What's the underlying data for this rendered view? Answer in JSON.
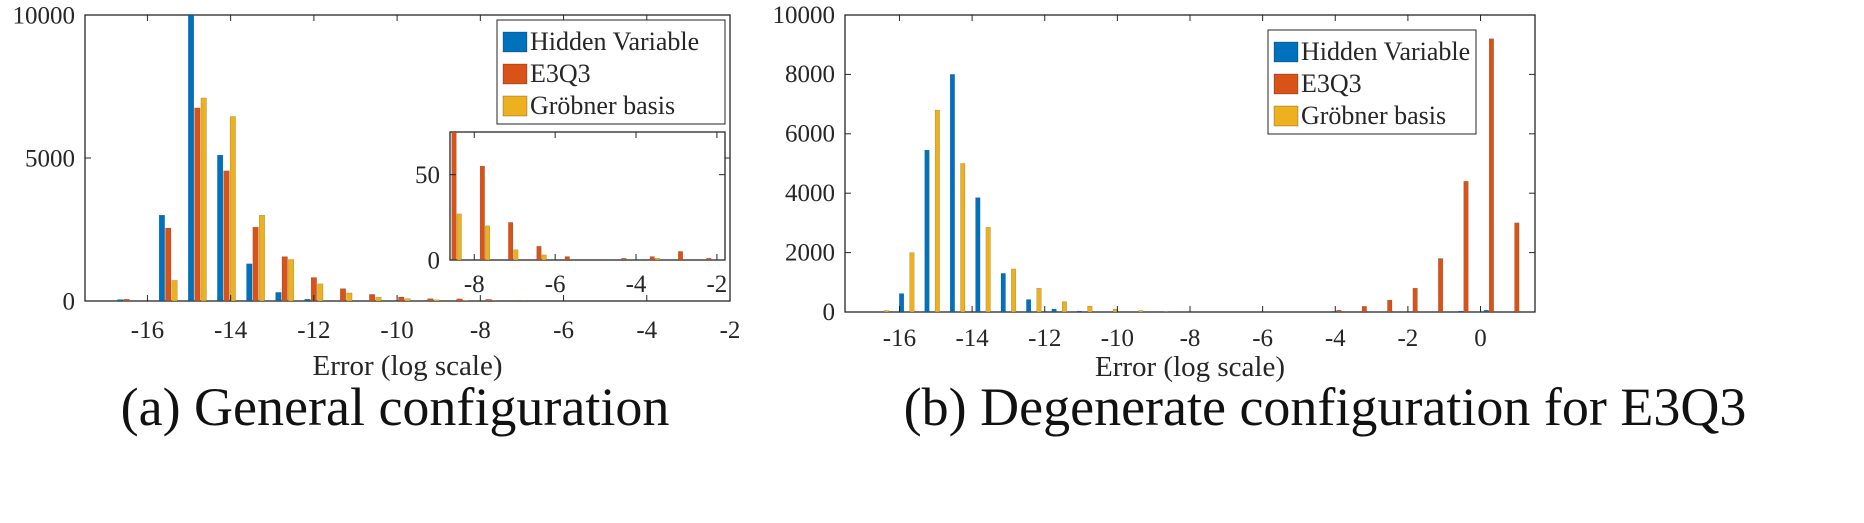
{
  "colors": {
    "hidden_variable": "#0072BD",
    "e3q3": "#D95319",
    "grobner": "#EDB120",
    "axis": "#262626"
  },
  "captions": {
    "a": "(a) General configuration",
    "b": "(b) Degenerate configuration for E3Q3"
  },
  "chart_data": [
    {
      "id": "a",
      "type": "bar",
      "title": "",
      "xlabel": "Error (log scale)",
      "ylabel": "",
      "xlim": [
        -17.5,
        -2
      ],
      "ylim": [
        0,
        10000
      ],
      "xticks": [
        -16,
        -14,
        -12,
        -10,
        -8,
        -6,
        -4,
        -2
      ],
      "yticks": [
        0,
        5000,
        10000
      ],
      "xtick_labels": [
        "-16",
        "-14",
        "-12",
        "-10",
        "-8",
        "-6",
        "-4",
        "-2"
      ],
      "ytick_labels": [
        "0",
        "5000",
        "10000"
      ],
      "legend": {
        "placement": "top-right",
        "entries": [
          "Hidden Variable",
          "E3Q3",
          "Gröbner basis"
        ]
      },
      "bin_width": 0.7,
      "x": [
        -16.5,
        -15.5,
        -14.8,
        -14.1,
        -13.4,
        -12.7,
        -12.0,
        -11.3,
        -10.6,
        -9.9,
        -9.2,
        -8.5,
        -7.8,
        -7.1
      ],
      "series": [
        {
          "name": "Hidden Variable",
          "values": [
            50,
            3000,
            10000,
            5100,
            1300,
            300,
            60,
            10,
            0,
            0,
            0,
            0,
            0,
            0
          ]
        },
        {
          "name": "E3Q3",
          "values": [
            60,
            2550,
            6750,
            4550,
            2580,
            1550,
            820,
            430,
            230,
            140,
            80,
            75,
            55,
            22
          ]
        },
        {
          "name": "Gröbner basis",
          "values": [
            0,
            720,
            7100,
            6450,
            3000,
            1450,
            600,
            280,
            130,
            80,
            40,
            20,
            5,
            3
          ]
        }
      ],
      "inset": {
        "xlim": [
          -8.6,
          -1.8
        ],
        "ylim": [
          0,
          75
        ],
        "xticks": [
          -8,
          -6,
          -4,
          -2
        ],
        "yticks": [
          0,
          50
        ],
        "xtick_labels": [
          "-8",
          "-6",
          "-4",
          "-2"
        ],
        "ytick_labels": [
          "0",
          "50"
        ],
        "x": [
          -8.5,
          -7.8,
          -7.1,
          -6.4,
          -5.7,
          -5.0,
          -4.3,
          -3.6,
          -2.9,
          -2.2
        ],
        "series": [
          {
            "name": "Hidden Variable",
            "values": [
              0,
              0,
              0,
              0,
              0,
              0,
              0,
              0,
              0,
              0
            ]
          },
          {
            "name": "E3Q3",
            "values": [
              75,
              55,
              22,
              8,
              2,
              0,
              1,
              2,
              5,
              1
            ]
          },
          {
            "name": "Gröbner basis",
            "values": [
              27,
              20,
              6,
              3,
              0,
              0,
              0,
              1,
              0,
              0
            ]
          }
        ]
      }
    },
    {
      "id": "b",
      "type": "bar",
      "title": "",
      "xlabel": "Error (log scale)",
      "ylabel": "",
      "xlim": [
        -17.5,
        1.5
      ],
      "ylim": [
        0,
        10000
      ],
      "xticks": [
        -16,
        -14,
        -12,
        -10,
        -8,
        -6,
        -4,
        -2,
        0
      ],
      "yticks": [
        0,
        2000,
        4000,
        6000,
        8000,
        10000
      ],
      "xtick_labels": [
        "-16",
        "-14",
        "-12",
        "-10",
        "-8",
        "-6",
        "-4",
        "-2",
        "0"
      ],
      "ytick_labels": [
        "0",
        "2000",
        "4000",
        "6000",
        "8000",
        "10000"
      ],
      "legend": {
        "placement": "top-right",
        "entries": [
          "Hidden Variable",
          "E3Q3",
          "Gröbner basis"
        ]
      },
      "bin_width": 0.7,
      "x": [
        -16.5,
        -15.8,
        -15.1,
        -14.4,
        -13.7,
        -13.0,
        -12.3,
        -11.6,
        -10.9,
        -10.2,
        -9.5,
        -8.8,
        -8.1,
        -7.4,
        -6.7,
        -6.0,
        -5.3,
        -4.6,
        -3.9,
        -3.2,
        -2.5,
        -1.8,
        -1.1,
        -0.4,
        0.3,
        1.0
      ],
      "series": [
        {
          "name": "Hidden Variable",
          "values": [
            10,
            620,
            5450,
            8000,
            3850,
            1300,
            420,
            100,
            30,
            10,
            5,
            0,
            0,
            0,
            0,
            0,
            0,
            0,
            20,
            0,
            0,
            0,
            0,
            30,
            60,
            10
          ]
        },
        {
          "name": "E3Q3",
          "values": [
            0,
            0,
            0,
            0,
            0,
            0,
            0,
            0,
            0,
            0,
            0,
            0,
            0,
            0,
            0,
            0,
            0,
            0,
            60,
            190,
            400,
            800,
            1800,
            4400,
            9200,
            3000
          ]
        },
        {
          "name": "Gröbner basis",
          "values": [
            50,
            2000,
            6800,
            5000,
            2850,
            1450,
            800,
            350,
            200,
            100,
            50,
            10,
            0,
            0,
            0,
            0,
            0,
            0,
            0,
            0,
            0,
            0,
            0,
            0,
            0,
            0
          ]
        }
      ]
    }
  ]
}
